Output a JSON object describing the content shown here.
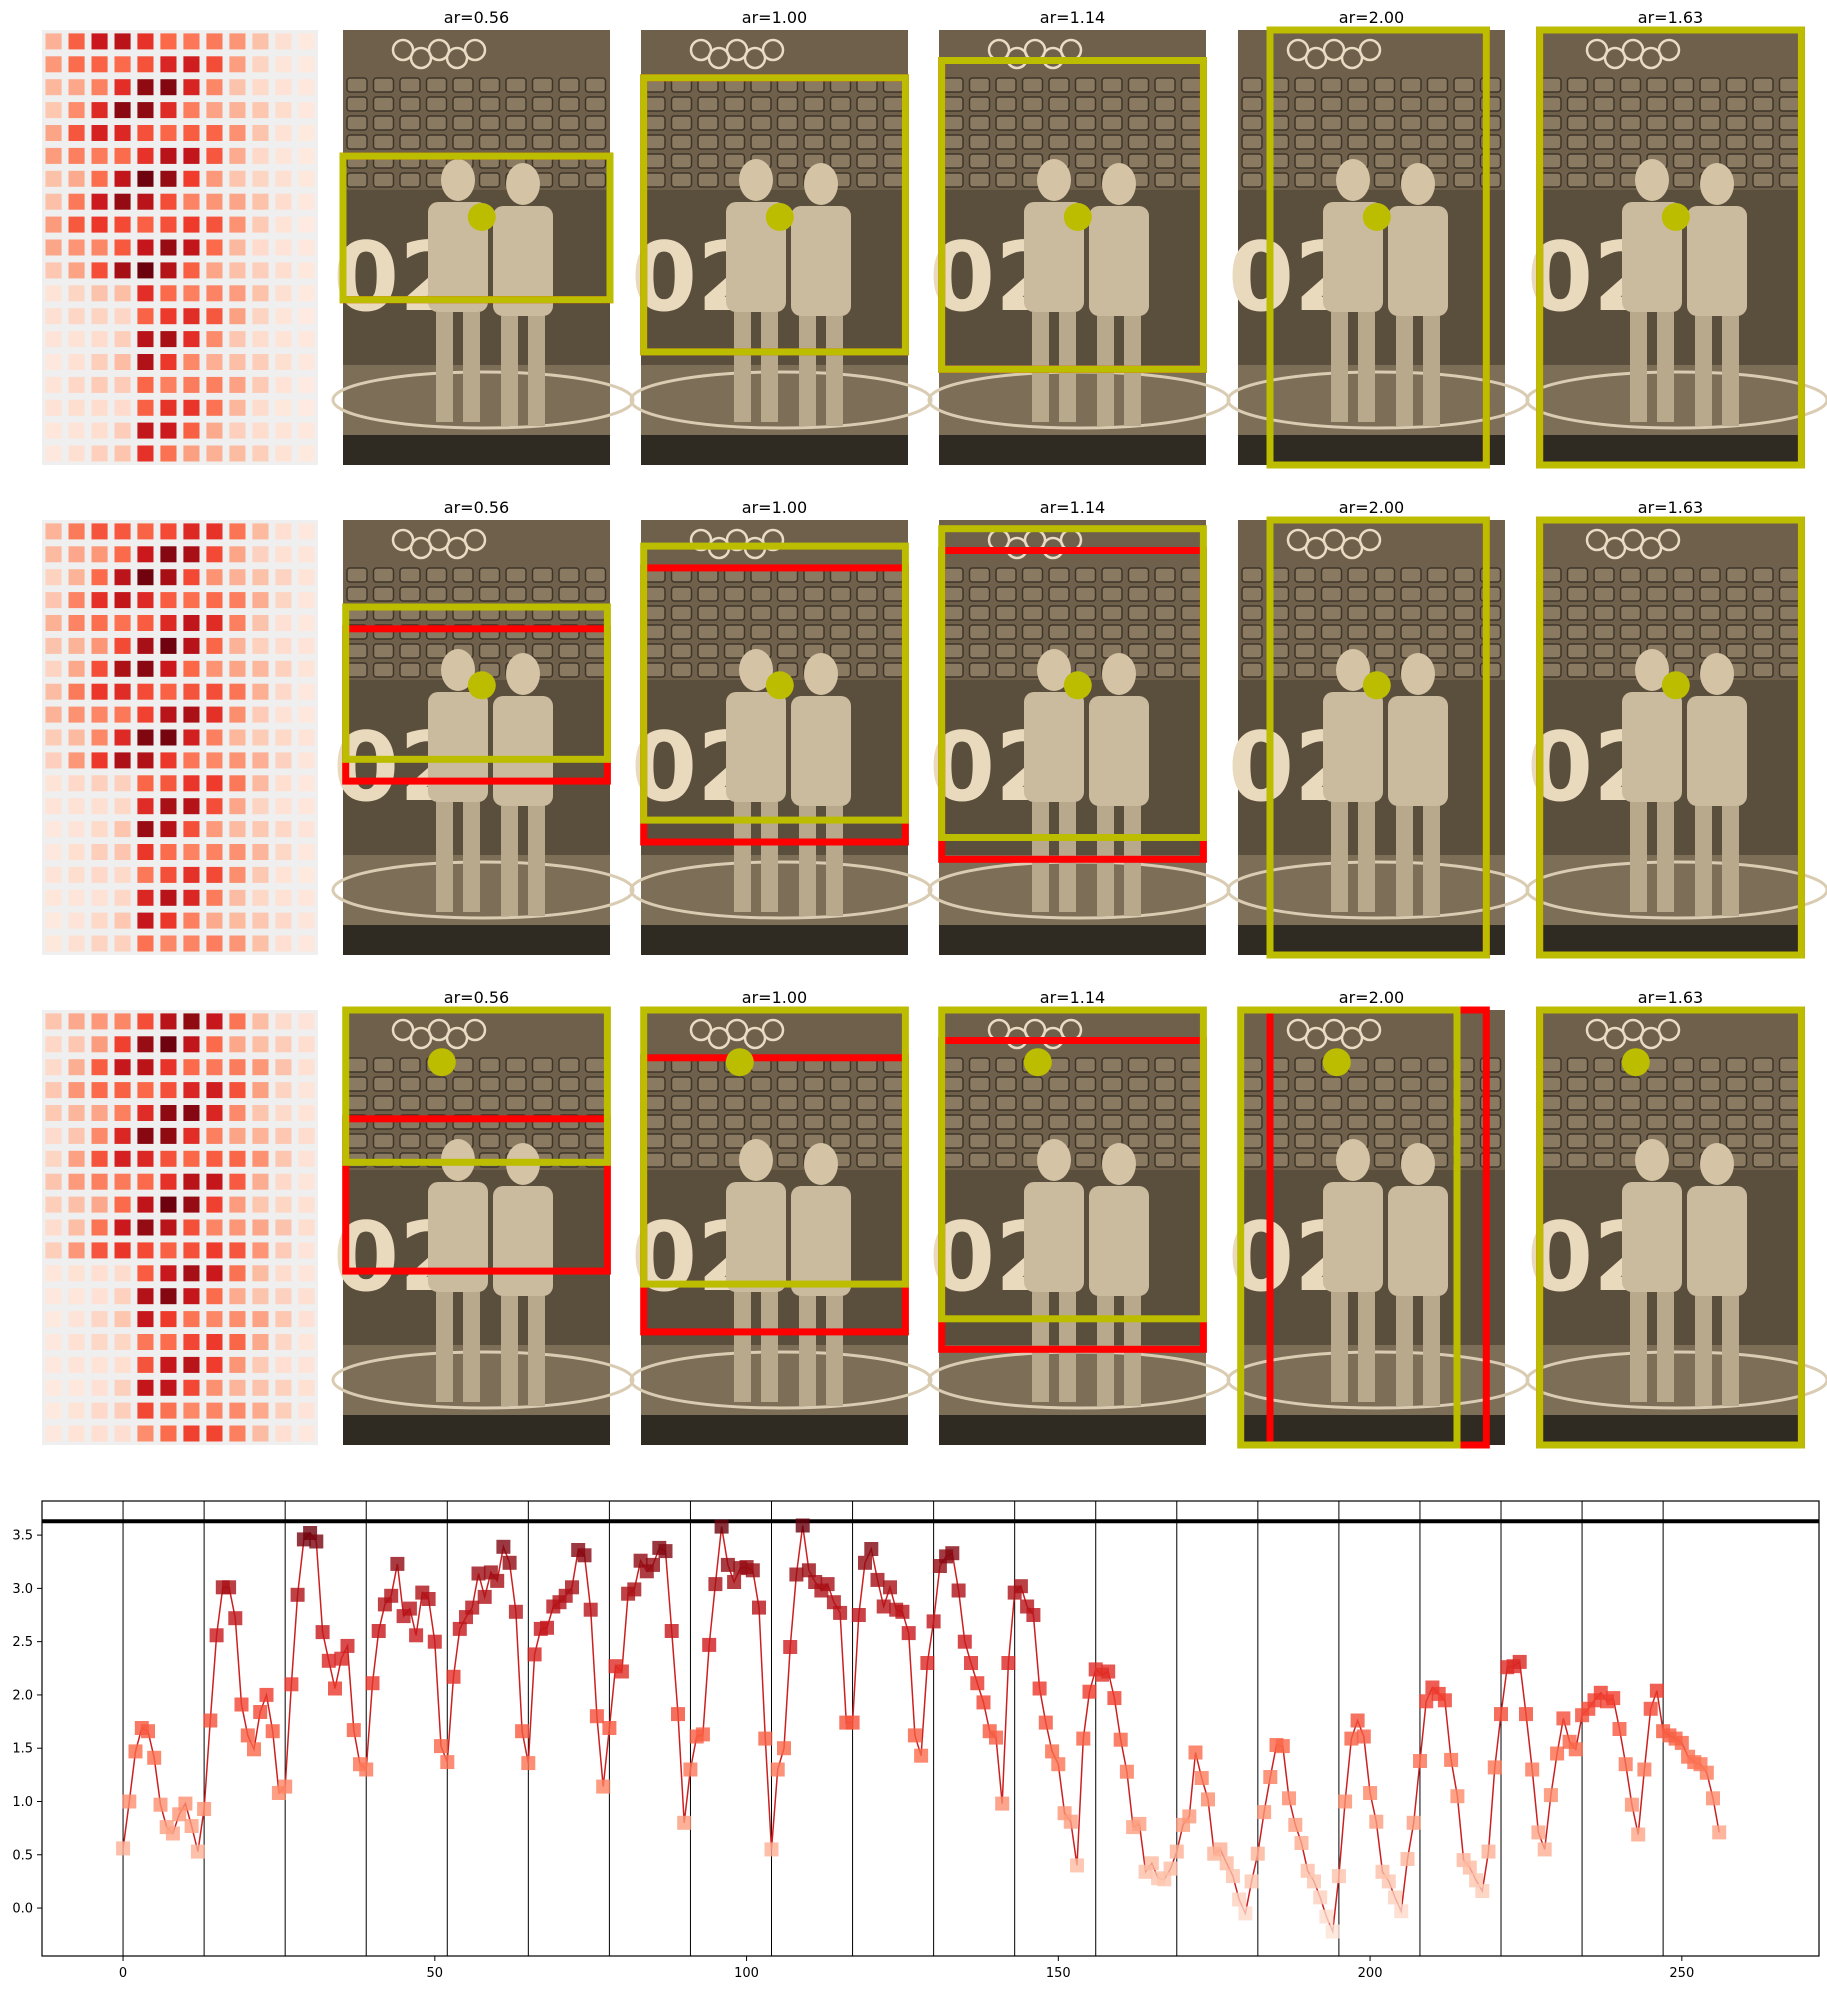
{
  "rows": [
    {
      "heatmap": {
        "cols": 12,
        "rows": 19
      },
      "crops": [
        {
          "title": "ar=0.56",
          "pred_box": [
            0,
            0.29,
            1,
            0.62
          ],
          "ref_box": [
            0,
            0.29,
            1,
            0.62
          ],
          "dot": [
            0.52,
            0.43
          ]
        },
        {
          "title": "ar=1.00",
          "pred_box": [
            0.01,
            0.11,
            0.99,
            0.74
          ],
          "ref_box": [
            0.01,
            0.11,
            0.99,
            0.74
          ],
          "dot": [
            0.52,
            0.43
          ]
        },
        {
          "title": "ar=1.14",
          "pred_box": [
            0.01,
            0.07,
            0.99,
            0.78
          ],
          "ref_box": [
            0.01,
            0.07,
            0.99,
            0.78
          ],
          "dot": [
            0.52,
            0.43
          ]
        },
        {
          "title": "ar=2.00",
          "pred_box": [
            0.12,
            0.0,
            0.93,
            1.0
          ],
          "ref_box": [
            0.12,
            0.0,
            0.93,
            1.0
          ],
          "dot": [
            0.52,
            0.43
          ]
        },
        {
          "title": "ar=1.63",
          "pred_box": [
            0.01,
            0.0,
            0.99,
            1.0
          ],
          "ref_box": [
            0.01,
            0.0,
            0.99,
            1.0
          ],
          "dot": [
            0.52,
            0.43
          ]
        }
      ]
    },
    {
      "heatmap": {
        "cols": 12,
        "rows": 19
      },
      "crops": [
        {
          "title": "ar=0.56",
          "pred_box": [
            0.01,
            0.2,
            0.99,
            0.55
          ],
          "ref_box": [
            0.01,
            0.25,
            0.99,
            0.6
          ],
          "dot": [
            0.52,
            0.38
          ]
        },
        {
          "title": "ar=1.00",
          "pred_box": [
            0.01,
            0.06,
            0.99,
            0.69
          ],
          "ref_box": [
            0.01,
            0.11,
            0.99,
            0.74
          ],
          "dot": [
            0.52,
            0.38
          ]
        },
        {
          "title": "ar=1.14",
          "pred_box": [
            0.01,
            0.02,
            0.99,
            0.73
          ],
          "ref_box": [
            0.01,
            0.07,
            0.99,
            0.78
          ],
          "dot": [
            0.52,
            0.38
          ]
        },
        {
          "title": "ar=2.00",
          "pred_box": [
            0.12,
            0.0,
            0.93,
            1.0
          ],
          "ref_box": [
            0.12,
            0.0,
            0.93,
            1.0
          ],
          "dot": [
            0.52,
            0.38
          ]
        },
        {
          "title": "ar=1.63",
          "pred_box": [
            0.01,
            0.0,
            0.99,
            1.0
          ],
          "ref_box": [
            0.01,
            0.0,
            0.99,
            1.0
          ],
          "dot": [
            0.52,
            0.38
          ]
        }
      ]
    },
    {
      "heatmap": {
        "cols": 12,
        "rows": 19
      },
      "crops": [
        {
          "title": "ar=0.56",
          "pred_box": [
            0.01,
            0.0,
            0.99,
            0.35
          ],
          "ref_box": [
            0.01,
            0.25,
            0.99,
            0.6
          ],
          "dot": [
            0.37,
            0.12
          ]
        },
        {
          "title": "ar=1.00",
          "pred_box": [
            0.01,
            0.0,
            0.99,
            0.63
          ],
          "ref_box": [
            0.01,
            0.11,
            0.99,
            0.74
          ],
          "dot": [
            0.37,
            0.12
          ]
        },
        {
          "title": "ar=1.14",
          "pred_box": [
            0.01,
            0.0,
            0.99,
            0.71
          ],
          "ref_box": [
            0.01,
            0.07,
            0.99,
            0.78
          ],
          "dot": [
            0.37,
            0.12
          ]
        },
        {
          "title": "ar=2.00",
          "pred_box": [
            0.01,
            0.0,
            0.82,
            1.0
          ],
          "ref_box": [
            0.12,
            0.0,
            0.93,
            1.0
          ],
          "dot": [
            0.37,
            0.12
          ]
        },
        {
          "title": "ar=1.63",
          "pred_box": [
            0.01,
            0.0,
            0.99,
            1.0
          ],
          "ref_box": [
            0.01,
            0.0,
            0.99,
            1.0
          ],
          "dot": [
            0.37,
            0.12
          ]
        }
      ]
    }
  ],
  "colors": {
    "pred_box": "#bdbd00",
    "ref_box": "#ff0000",
    "dot": "#bdbd00",
    "sepia_bg": "#6e604a",
    "line": "#cc2020",
    "threshold_line": "#000000"
  },
  "chart_data": {
    "type": "line",
    "title": "",
    "xlabel": "",
    "ylabel": "",
    "xlim": [
      -13,
      272
    ],
    "ylim": [
      -0.45,
      3.82
    ],
    "xticks": [
      "0",
      "50",
      "100",
      "150",
      "200",
      "250"
    ],
    "xtick_values": [
      0,
      50,
      100,
      150,
      200,
      250
    ],
    "yticks": [
      "0.0",
      "0.5",
      "1.0",
      "1.5",
      "2.0",
      "2.5",
      "3.0",
      "3.5"
    ],
    "ytick_values": [
      0.0,
      0.5,
      1.0,
      1.5,
      2.0,
      2.5,
      3.0,
      3.5
    ],
    "threshold": 3.63,
    "group_boundaries": [
      0,
      13,
      26,
      39,
      52,
      65,
      78,
      91,
      104,
      117,
      130,
      143,
      156,
      169,
      182,
      195,
      208,
      221,
      234,
      247
    ],
    "marker": "square",
    "grid": false,
    "legend": "none",
    "values": [
      0.56,
      1.0,
      1.47,
      1.69,
      1.66,
      1.41,
      0.97,
      0.76,
      0.7,
      0.88,
      0.98,
      0.77,
      0.53,
      0.93,
      1.76,
      2.56,
      3.01,
      3.01,
      2.72,
      1.91,
      1.62,
      1.49,
      1.84,
      2.0,
      1.66,
      1.08,
      1.14,
      2.1,
      2.94,
      3.46,
      3.52,
      3.44,
      2.59,
      2.32,
      2.06,
      2.34,
      2.46,
      1.67,
      1.35,
      1.3,
      2.11,
      2.6,
      2.85,
      2.93,
      3.23,
      2.74,
      2.81,
      2.56,
      2.96,
      2.9,
      2.5,
      1.52,
      1.37,
      2.17,
      2.62,
      2.73,
      2.82,
      3.14,
      2.92,
      3.15,
      3.07,
      3.39,
      3.24,
      2.78,
      1.66,
      1.36,
      2.38,
      2.62,
      2.63,
      2.83,
      2.87,
      2.93,
      3.01,
      3.36,
      3.31,
      2.8,
      1.8,
      1.14,
      1.69,
      2.27,
      2.22,
      2.95,
      2.99,
      3.26,
      3.16,
      3.22,
      3.38,
      3.35,
      2.6,
      1.82,
      0.8,
      1.3,
      1.61,
      1.63,
      2.47,
      3.04,
      3.58,
      3.22,
      3.06,
      3.19,
      3.2,
      3.17,
      2.82,
      1.59,
      0.55,
      1.3,
      1.5,
      2.45,
      3.13,
      3.59,
      3.17,
      3.06,
      2.98,
      3.04,
      2.87,
      2.77,
      1.74,
      1.74,
      2.75,
      3.24,
      3.37,
      3.08,
      2.83,
      3.01,
      2.8,
      2.78,
      2.58,
      1.62,
      1.43,
      2.3,
      2.69,
      3.21,
      3.3,
      3.33,
      2.98,
      2.5,
      2.3,
      2.11,
      1.93,
      1.66,
      1.6,
      0.98,
      2.3,
      2.96,
      3.02,
      2.83,
      2.75,
      2.06,
      1.74,
      1.47,
      1.35,
      0.89,
      0.81,
      0.4,
      1.59,
      2.03,
      2.24,
      2.19,
      2.22,
      1.97,
      1.58,
      1.28,
      0.76,
      0.79,
      0.34,
      0.42,
      0.28,
      0.27,
      0.37,
      0.53,
      0.78,
      0.86,
      1.46,
      1.22,
      1.02,
      0.51,
      0.55,
      0.42,
      0.3,
      0.08,
      -0.05,
      0.25,
      0.51,
      0.9,
      1.23,
      1.53,
      1.52,
      1.03,
      0.78,
      0.61,
      0.35,
      0.25,
      0.1,
      -0.08,
      -0.22,
      0.3,
      1.0,
      1.59,
      1.76,
      1.61,
      1.08,
      0.81,
      0.34,
      0.25,
      0.1,
      -0.03,
      0.46,
      0.8,
      1.38,
      1.94,
      2.07,
      2.01,
      1.95,
      1.39,
      1.05,
      0.45,
      0.38,
      0.26,
      0.16,
      0.53,
      1.32,
      1.82,
      2.26,
      2.27,
      2.31,
      1.82,
      1.3,
      0.71,
      0.55,
      1.06,
      1.45,
      1.78,
      1.56,
      1.49,
      1.81,
      1.87,
      1.95,
      2.02,
      1.94,
      1.97,
      1.68,
      1.35,
      0.97,
      0.69,
      1.3,
      1.87,
      2.04,
      1.66,
      1.62,
      1.59,
      1.55,
      1.42,
      1.37,
      1.35,
      1.27,
      1.03,
      0.71
    ]
  }
}
